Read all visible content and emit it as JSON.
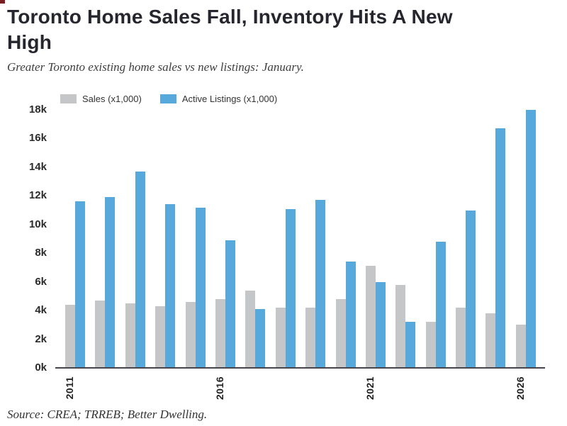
{
  "header": {
    "title_lines": [
      "Toronto Home Sales Fall, Inventory Hits A New",
      "High"
    ],
    "subtitle": "Greater Toronto existing home sales vs new listings: January."
  },
  "footer": {
    "source": "Source: CREA; TRREB; Better Dwelling."
  },
  "colors": {
    "axis_line": "#45454b",
    "title_text": "#26262e",
    "corner_mark": "#7a1e22"
  },
  "chart_data": {
    "type": "bar",
    "title": "Toronto Home Sales Fall, Inventory Hits A New High",
    "subtitle": "Greater Toronto existing home sales vs new listings: January.",
    "source": "Source: CREA; TRREB; Better Dwelling.",
    "unit": "thousands",
    "categories": [
      2011,
      2012,
      2013,
      2014,
      2015,
      2016,
      2017,
      2018,
      2019,
      2020,
      2021,
      2022,
      2023,
      2024,
      2025,
      2026
    ],
    "series": [
      {
        "key": "sales",
        "name": "Sales (x1,000)",
        "color": "#c5c6c8",
        "values": [
          4.4,
          4.7,
          4.5,
          4.3,
          4.6,
          4.8,
          5.4,
          4.2,
          4.2,
          4.8,
          7.1,
          5.8,
          3.2,
          4.2,
          3.8,
          3.0
        ]
      },
      {
        "key": "listings",
        "name": "Active Listings (x1,000)",
        "color": "#57a9dc",
        "values": [
          11.6,
          11.9,
          13.7,
          11.4,
          11.2,
          8.9,
          4.1,
          11.1,
          11.7,
          7.4,
          6.0,
          3.2,
          8.8,
          11.0,
          16.7,
          18.0
        ]
      }
    ],
    "ylim": [
      0,
      18
    ],
    "ytick_labels": [
      "18k",
      "16k",
      "14k",
      "12k",
      "10k",
      "8k",
      "6k",
      "4k",
      "2k",
      "0k"
    ],
    "ytick_values": [
      18,
      16,
      14,
      12,
      10,
      8,
      6,
      4,
      2,
      0
    ],
    "xtick_labels": [
      "2011",
      "2016",
      "2021",
      "2026"
    ],
    "xtick_indices": [
      0,
      5,
      10,
      15
    ],
    "grid": false,
    "legend_position": "top-left"
  }
}
